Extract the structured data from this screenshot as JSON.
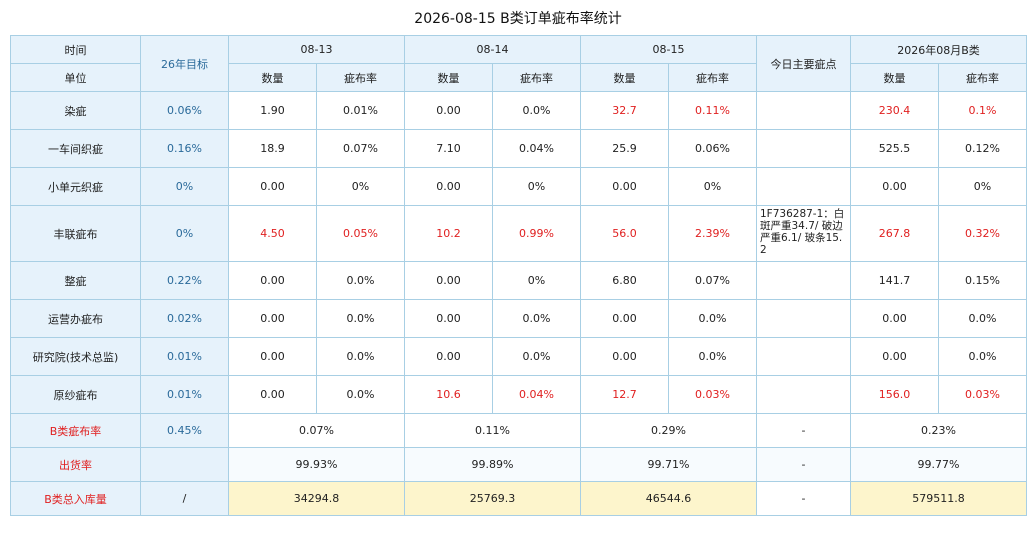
{
  "title": "2026-08-15 B类订单疵布率统计",
  "header": {
    "time_label": "时间",
    "unit_label": "单位",
    "target_label": "26年目标",
    "dates": [
      "08-13",
      "08-14",
      "08-15"
    ],
    "main_defect_label": "今日主要疵点",
    "month_label": "2026年08月B类",
    "qty_label": "数量",
    "rate_label": "疵布率"
  },
  "rows": [
    {
      "name": "染疵",
      "target": "0.06%",
      "d1q": "1.90",
      "d1r": "0.01%",
      "d2q": "0.00",
      "d2r": "0.0%",
      "d3q": "32.7",
      "d3r": "0.11%",
      "note": "",
      "mq": "230.4",
      "mr": "0.1%"
    },
    {
      "name": "一车间织疵",
      "target": "0.16%",
      "d1q": "18.9",
      "d1r": "0.07%",
      "d2q": "7.10",
      "d2r": "0.04%",
      "d3q": "25.9",
      "d3r": "0.06%",
      "note": "",
      "mq": "525.5",
      "mr": "0.12%"
    },
    {
      "name": "小单元织疵",
      "target": "0%",
      "d1q": "0.00",
      "d1r": "0%",
      "d2q": "0.00",
      "d2r": "0%",
      "d3q": "0.00",
      "d3r": "0%",
      "note": "",
      "mq": "0.00",
      "mr": "0%"
    },
    {
      "name": "丰联疵布",
      "target": "0%",
      "d1q": "4.50",
      "d1r": "0.05%",
      "d2q": "10.2",
      "d2r": "0.99%",
      "d3q": "56.0",
      "d3r": "2.39%",
      "note": "1F736287-1：白斑严重34.7/ 破边严重6.1/ 玻条15.2",
      "mq": "267.8",
      "mr": "0.32%"
    },
    {
      "name": "整疵",
      "target": "0.22%",
      "d1q": "0.00",
      "d1r": "0.0%",
      "d2q": "0.00",
      "d2r": "0%",
      "d3q": "6.80",
      "d3r": "0.07%",
      "note": "",
      "mq": "141.7",
      "mr": "0.15%"
    },
    {
      "name": "运营办疵布",
      "target": "0.02%",
      "d1q": "0.00",
      "d1r": "0.0%",
      "d2q": "0.00",
      "d2r": "0.0%",
      "d3q": "0.00",
      "d3r": "0.0%",
      "note": "",
      "mq": "0.00",
      "mr": "0.0%"
    },
    {
      "name": "研究院(技术总监)",
      "target": "0.01%",
      "d1q": "0.00",
      "d1r": "0.0%",
      "d2q": "0.00",
      "d2r": "0.0%",
      "d3q": "0.00",
      "d3r": "0.0%",
      "note": "",
      "mq": "0.00",
      "mr": "0.0%"
    },
    {
      "name": "原纱疵布",
      "target": "0.01%",
      "d1q": "0.00",
      "d1r": "0.0%",
      "d2q": "10.6",
      "d2r": "0.04%",
      "d3q": "12.7",
      "d3r": "0.03%",
      "note": "",
      "mq": "156.0",
      "mr": "0.03%"
    }
  ],
  "summary": {
    "rate": {
      "label": "B类疵布率",
      "target": "0.45%",
      "d1": "0.07%",
      "d2": "0.11%",
      "d3": "0.29%",
      "note": "-",
      "month": "0.23%"
    },
    "ship": {
      "label": "出货率",
      "target": "",
      "d1": "99.93%",
      "d2": "99.89%",
      "d3": "99.71%",
      "note": "-",
      "month": "99.77%"
    },
    "stock": {
      "label": "B类总入库量",
      "target": "/",
      "d1": "34294.8",
      "d2": "25769.3",
      "d3": "46544.6",
      "note": "-",
      "month": "579511.8"
    }
  },
  "colors": {
    "header_bg": "#e6f2fb",
    "border": "#a8cfe4",
    "highlight_red": "#e02020",
    "total_bg": "#fdf5cc",
    "target_text": "#2a6a9a"
  }
}
